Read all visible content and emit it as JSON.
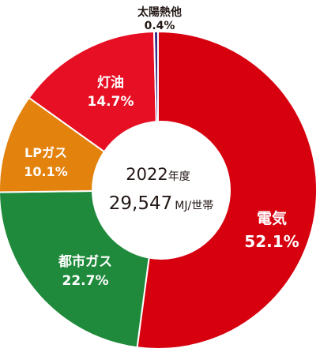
{
  "chart_data": {
    "type": "pie",
    "variant": "donut",
    "series": [
      {
        "name": "電気",
        "value": 52.1,
        "display": "52.1%",
        "color": "#d7000f"
      },
      {
        "name": "都市ガス",
        "value": 22.7,
        "display": "22.7%",
        "color": "#1f8a3c"
      },
      {
        "name": "LPガス",
        "value": 10.1,
        "display": "10.1%",
        "color": "#e3820c"
      },
      {
        "name": "灯油",
        "value": 14.7,
        "display": "14.7%",
        "color": "#e60f24"
      },
      {
        "name": "太陽熱他",
        "value": 0.4,
        "display": "0.4%",
        "color": "#3a2d8a"
      }
    ],
    "center": {
      "year": "2022",
      "year_suffix": "年度",
      "total": "29,547",
      "unit": "MJ/世帯"
    }
  }
}
